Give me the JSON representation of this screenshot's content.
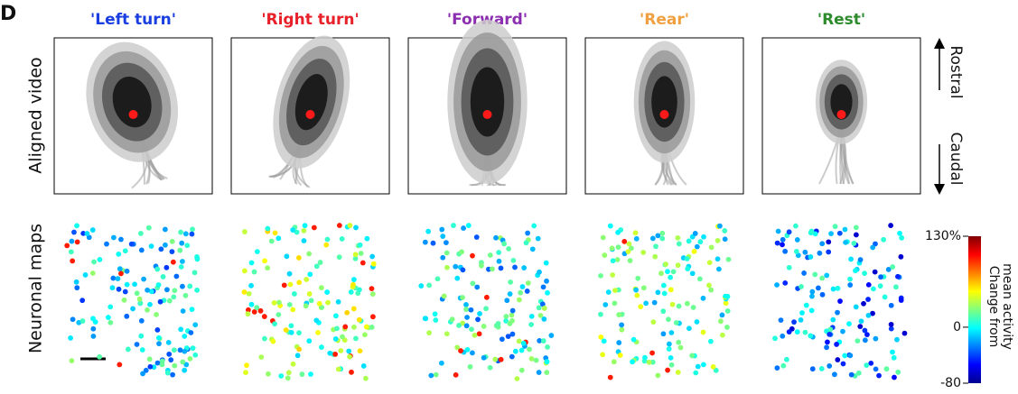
{
  "panel_label": "D",
  "columns": [
    {
      "title": "'Left turn'",
      "color": "#1a3ee0"
    },
    {
      "title": "'Right turn'",
      "color": "#e8202a"
    },
    {
      "title": "'Forward'",
      "color": "#8b2fb0"
    },
    {
      "title": "'Rear'",
      "color": "#f0a040"
    },
    {
      "title": "'Rest'",
      "color": "#2e8b2e"
    }
  ],
  "row_labels": [
    "Aligned video",
    "Neuronal maps"
  ],
  "axis_labels": {
    "rostral": "Rostral",
    "caudal": "Caudal"
  },
  "colorbar": {
    "label": [
      "Change from",
      "mean activity"
    ],
    "lim": [
      -80,
      130
    ],
    "ticks": [
      {
        "value": 130,
        "label": "130%"
      },
      0,
      -80
    ]
  }
}
